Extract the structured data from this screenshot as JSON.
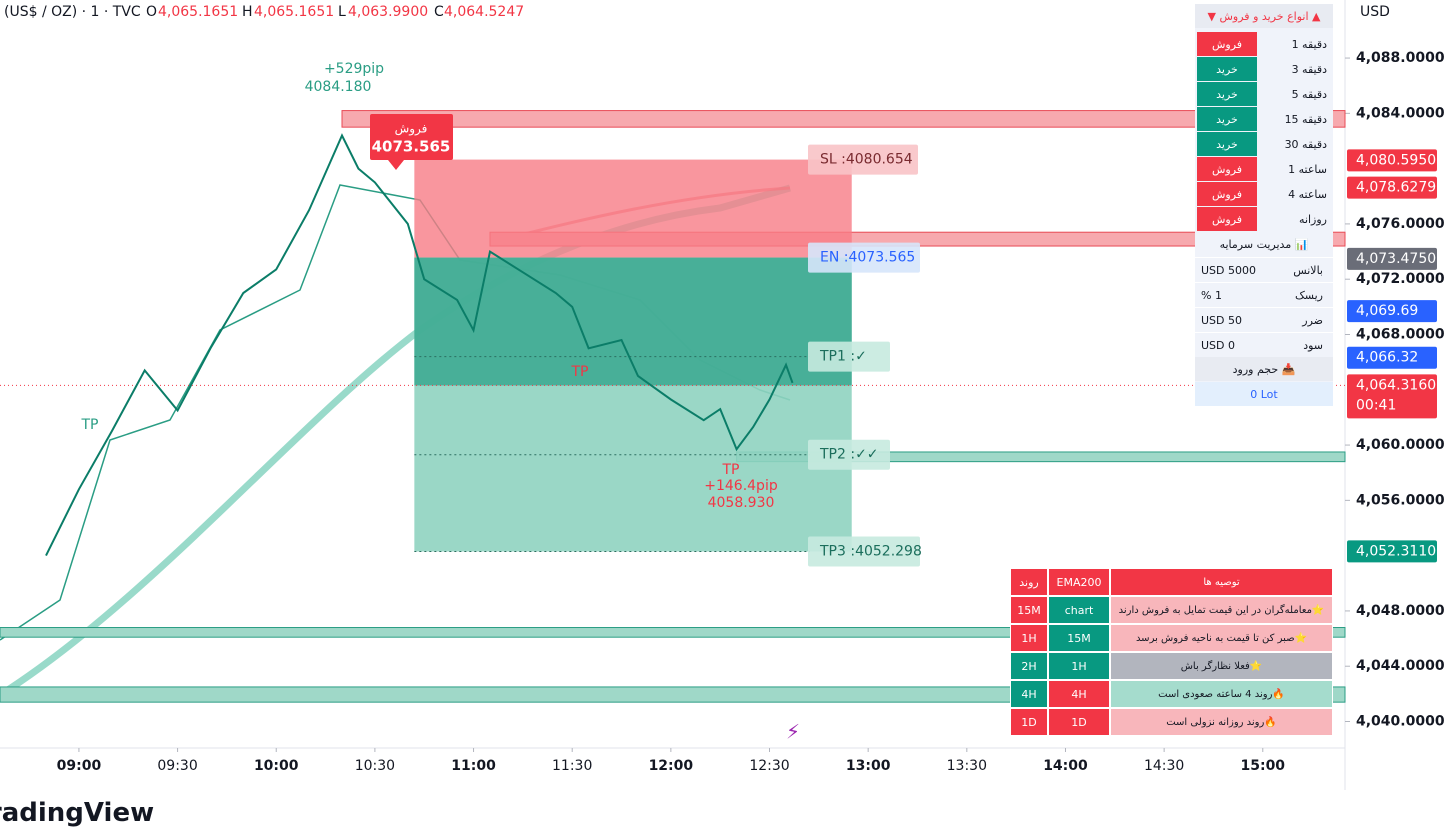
{
  "header": {
    "symbol": "(US$ / OZ) · 1 · TVC",
    "currency": "USD",
    "ohlc": [
      {
        "key": "O",
        "value": "4,065.1651"
      },
      {
        "key": "H",
        "value": "4,065.1651"
      },
      {
        "key": "L",
        "value": "4,063.9900"
      },
      {
        "key": "C",
        "value": "4,064.5247"
      }
    ]
  },
  "chart_data": {
    "type": "line",
    "color": "#0b7d68",
    "x": [
      "08:50",
      "09:00",
      "09:10",
      "09:20",
      "09:30",
      "09:40",
      "09:50",
      "10:00",
      "10:10",
      "10:20",
      "10:25",
      "10:30",
      "10:40",
      "10:45",
      "10:55",
      "11:00",
      "11:05",
      "11:15",
      "11:25",
      "11:30",
      "11:35",
      "11:45",
      "11:50",
      "12:00",
      "12:10",
      "12:15",
      "12:20",
      "12:25",
      "12:30",
      "12:35",
      "12:37"
    ],
    "values": [
      4052,
      4056.8,
      4061,
      4065.4,
      4062.5,
      4067,
      4071,
      4072.7,
      4077,
      4082.4,
      4080,
      4079,
      4076,
      4072,
      4070.5,
      4068.3,
      4074,
      4072.5,
      4071,
      4070,
      4067,
      4067.6,
      4065,
      4063.3,
      4061.8,
      4062.6,
      4059.7,
      4061.3,
      4063.3,
      4065.8,
      4064.5
    ],
    "xlim": [
      "08:36",
      "15:25"
    ],
    "xticks": [
      "09:00",
      "09:30",
      "10:00",
      "10:30",
      "11:00",
      "11:30",
      "12:00",
      "12:30",
      "13:00",
      "13:30",
      "14:00",
      "14:30",
      "15:00"
    ],
    "ylim": [
      4038.3,
      4092.2
    ],
    "yticks": [
      {
        "value": 4040,
        "label": "4,040.0000"
      },
      {
        "value": 4044,
        "label": "4,044.0000"
      },
      {
        "value": 4048,
        "label": "4,048.0000"
      },
      {
        "value": 4056,
        "label": "4,056.0000"
      },
      {
        "value": 4060,
        "label": "4,060.0000"
      },
      {
        "value": 4068,
        "label": "4,068.0000"
      },
      {
        "value": 4072,
        "label": "4,072.0000"
      },
      {
        "value": 4076,
        "label": "4,076.0000"
      },
      {
        "value": 4084,
        "label": "4,084.0000"
      },
      {
        "value": 4088,
        "label": "4,088.0000"
      }
    ],
    "last_price": 4064.316,
    "price_labels": [
      {
        "value": 4080.595,
        "label": "4,080.5950",
        "color": "#f23645"
      },
      {
        "value": 4078.6279,
        "label": "4,078.6279",
        "color": "#f23645"
      },
      {
        "value": 4073.475,
        "label": "4,073.4750",
        "color": "#6a6d78"
      },
      {
        "value": 4069.69,
        "label": "4,069.69",
        "color": "#2962ff"
      },
      {
        "value": 4066.32,
        "label": "4,066.32",
        "color": "#2962ff"
      },
      {
        "value": 4064.316,
        "label": "4,064.3160",
        "color": "#f23645",
        "countdown": "00:41"
      },
      {
        "value": 4052.311,
        "label": "4,052.3110",
        "color": "#089981"
      }
    ],
    "zones": [
      {
        "top": 4084.2,
        "bottom": 4083.0,
        "from": "10:20",
        "color": "#f7a9ae"
      },
      {
        "top": 4075.4,
        "bottom": 4074.4,
        "from": "11:05",
        "color": "#f7a9ae"
      },
      {
        "top": 4059.5,
        "bottom": 4058.8,
        "from": "12:20",
        "color": "#9fd8c8"
      },
      {
        "top": 4046.8,
        "bottom": 4046.1,
        "from": "08:36",
        "color": "#9fd8c8"
      },
      {
        "top": 4042.5,
        "bottom": 4041.4,
        "from": "08:36",
        "color": "#9fd8c8"
      }
    ],
    "position": {
      "from": "10:42",
      "to": "12:55",
      "sl": 4080.654,
      "entry": 4073.565,
      "tp1": 4066.4,
      "tp2": 4059.3,
      "tp3": 4052.298,
      "labels": {
        "sl": "SL :4080.654",
        "entry": "EN :4073.565",
        "tp1": "TP1 :✓",
        "tp2": "TP2 :✓✓",
        "tp3": "TP3 :4052.298"
      }
    },
    "annotations": [
      "+529pip",
      "4084.180",
      "فروش",
      "4073.565",
      "TP",
      "TP",
      "TP",
      "+146.4pip",
      "4058.930"
    ]
  },
  "signals": {
    "title": "▲ انواع خرید و فروش ▼",
    "rows": [
      {
        "tf": "دقیقه 1",
        "signal": "فروش",
        "color": "#f23645"
      },
      {
        "tf": "دقیقه 3",
        "signal": "خرید",
        "color": "#089981"
      },
      {
        "tf": "دقیقه 5",
        "signal": "خرید",
        "color": "#089981"
      },
      {
        "tf": "دقیقه 15",
        "signal": "خرید",
        "color": "#089981"
      },
      {
        "tf": "دقیقه 30",
        "signal": "خرید",
        "color": "#089981"
      },
      {
        "tf": "ساعته 1",
        "signal": "فروش",
        "color": "#f23645"
      },
      {
        "tf": "ساعته 4",
        "signal": "فروش",
        "color": "#f23645"
      },
      {
        "tf": "روزانه",
        "signal": "فروش",
        "color": "#f23645"
      }
    ],
    "money_title": "📊 مدیریت سرمایه",
    "money": [
      {
        "label": "بالانس",
        "value": "USD 5000"
      },
      {
        "label": "ریسک",
        "value": "% 1"
      },
      {
        "label": "ضرر",
        "value": "USD 50"
      },
      {
        "label": "سود",
        "value": "USD 0"
      }
    ],
    "volume_title": "📥 حجم ورود",
    "volume": "0 Lot"
  },
  "recommendations": {
    "headers": [
      "روند",
      "EMA200",
      "توصیه ها"
    ],
    "rows": [
      {
        "trend": "15M",
        "ema": "chart",
        "text": "⭐معامله‌گران در این قیمت تمایل به فروش دارند",
        "c1": "#f23645",
        "c2": "#089981",
        "bg": "#f8b6bb"
      },
      {
        "trend": "1H",
        "ema": "15M",
        "text": "⭐صبر کن تا قیمت به ناحیه فروش برسد",
        "c1": "#f23645",
        "c2": "#089981",
        "bg": "#f8b6bb"
      },
      {
        "trend": "2H",
        "ema": "1H",
        "text": "⭐فعلا نظارگر باش",
        "c1": "#089981",
        "c2": "#089981",
        "bg": "#b2b5be"
      },
      {
        "trend": "4H",
        "ema": "4H",
        "text": "🔥روند 4 ساعته صعودی است",
        "c1": "#089981",
        "c2": "#f23645",
        "bg": "#a5dccd"
      },
      {
        "trend": "1D",
        "ema": "1D",
        "text": "🔥روند روزانه نزولی است",
        "c1": "#f23645",
        "c2": "#f23645",
        "bg": "#f8b6bb"
      }
    ]
  },
  "watermark": "TradingView"
}
